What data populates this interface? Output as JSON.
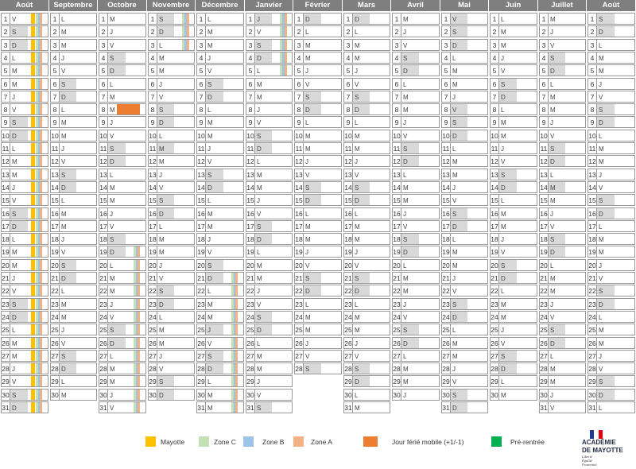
{
  "calendar": {
    "first_weekday_index": 4,
    "weekday_letters": [
      "L",
      "M",
      "M",
      "J",
      "V",
      "S",
      "D"
    ],
    "months": [
      {
        "name": "Août",
        "days": 31,
        "start": 4,
        "holidays": [],
        "mayotte": [
          1,
          31
        ],
        "zoneC": [
          1,
          31
        ],
        "zoneB": [
          1,
          31
        ],
        "zoneA": [
          1,
          31
        ],
        "ferie": [],
        "rentree": []
      },
      {
        "name": "Septembre",
        "days": 30,
        "start": 0,
        "holidays": [],
        "mayotte": [],
        "zoneC": [],
        "zoneB": [],
        "zoneA": [],
        "ferie": [],
        "rentree": []
      },
      {
        "name": "Octobre",
        "days": 31,
        "start": 2,
        "holidays": [],
        "mayotte": [],
        "zoneC": [
          19,
          31
        ],
        "zoneB": [
          19,
          31
        ],
        "zoneA": [
          19,
          31
        ],
        "ferie": [
          8
        ],
        "rentree": []
      },
      {
        "name": "Novembre",
        "days": 30,
        "start": 5,
        "holidays": [
          1,
          11
        ],
        "mayotte": [],
        "zoneC": [
          1,
          3
        ],
        "zoneB": [
          1,
          3
        ],
        "zoneA": [
          1,
          3
        ],
        "ferie": [],
        "rentree": []
      },
      {
        "name": "Décembre",
        "days": 31,
        "start": 0,
        "holidays": [
          25
        ],
        "mayotte": [],
        "zoneC": [
          21,
          31
        ],
        "zoneB": [
          21,
          31
        ],
        "zoneA": [
          21,
          31
        ],
        "ferie": [],
        "rentree": []
      },
      {
        "name": "Janvier",
        "days": 31,
        "start": 3,
        "holidays": [
          1
        ],
        "mayotte": [],
        "zoneC": [
          1,
          5
        ],
        "zoneB": [
          1,
          5
        ],
        "zoneA": [
          1,
          5
        ],
        "ferie": [],
        "rentree": []
      },
      {
        "name": "Février",
        "days": 28,
        "start": 6,
        "holidays": [],
        "mayotte": [],
        "zoneC": [],
        "zoneB": [],
        "zoneA": [],
        "ferie": [],
        "rentree": []
      },
      {
        "name": "Mars",
        "days": 31,
        "start": 6,
        "holidays": [],
        "mayotte": [],
        "zoneC": [],
        "zoneB": [],
        "zoneA": [],
        "ferie": [],
        "rentree": []
      },
      {
        "name": "Avril",
        "days": 30,
        "start": 2,
        "holidays": [],
        "mayotte": [],
        "zoneC": [],
        "zoneB": [],
        "zoneA": [],
        "ferie": [],
        "rentree": []
      },
      {
        "name": "Mai",
        "days": 31,
        "start": 4,
        "holidays": [
          1,
          8
        ],
        "mayotte": [],
        "zoneC": [],
        "zoneB": [],
        "zoneA": [],
        "ferie": [],
        "rentree": []
      },
      {
        "name": "Juin",
        "days": 30,
        "start": 0,
        "holidays": [],
        "mayotte": [],
        "zoneC": [],
        "zoneB": [],
        "zoneA": [],
        "ferie": [],
        "rentree": []
      },
      {
        "name": "Juillet",
        "days": 31,
        "start": 2,
        "holidays": [
          14
        ],
        "mayotte": [],
        "zoneC": [],
        "zoneB": [],
        "zoneA": [],
        "ferie": [],
        "rentree": []
      },
      {
        "name": "Août",
        "days": 31,
        "start": 5,
        "holidays": [
          15
        ],
        "mayotte": [],
        "zoneC": [],
        "zoneB": [],
        "zoneA": [],
        "ferie": [],
        "rentree": []
      }
    ]
  },
  "legend": [
    {
      "label": "Mayotte",
      "color": "#ffc000"
    },
    {
      "label": "Zone C",
      "color": "#c5e0b4"
    },
    {
      "label": "Zone B",
      "color": "#9dc3e6"
    },
    {
      "label": "Zone A",
      "color": "#f4b183"
    },
    {
      "label": "Jour férié mobile (+1/-1)",
      "color": "#ed7d31"
    },
    {
      "label": "Pré-rentrée",
      "color": "#00b050"
    }
  ],
  "logo": {
    "line1": "ACADÉMIE",
    "line2": "DE MAYOTTE",
    "motto1": "Liberté",
    "motto2": "Égalité",
    "motto3": "Fraternité"
  }
}
